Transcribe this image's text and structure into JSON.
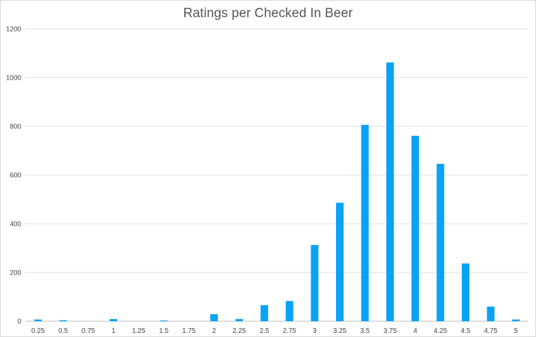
{
  "chart_data": {
    "type": "bar",
    "title": "Ratings per Checked In Beer",
    "xlabel": "",
    "ylabel": "",
    "categories": [
      "0.25",
      "0.5",
      "0.75",
      "1",
      "1.25",
      "1.5",
      "1.75",
      "2",
      "2.25",
      "2.5",
      "2.75",
      "3",
      "3.25",
      "3.5",
      "3.75",
      "4",
      "4.25",
      "4.5",
      "4.75",
      "5"
    ],
    "values": [
      7,
      4,
      0,
      9,
      0,
      3,
      0,
      29,
      9,
      66,
      83,
      313,
      486,
      806,
      1062,
      761,
      646,
      237,
      60,
      7
    ],
    "ylim": [
      0,
      1200
    ],
    "yticks": [
      "0",
      "200",
      "400",
      "600",
      "800",
      "1000",
      "1200"
    ],
    "grid": true,
    "legend": "none",
    "colors": {
      "bar": "#0aa2f5",
      "grid": "#dddddd",
      "baseline": "#bbbbbb"
    }
  }
}
